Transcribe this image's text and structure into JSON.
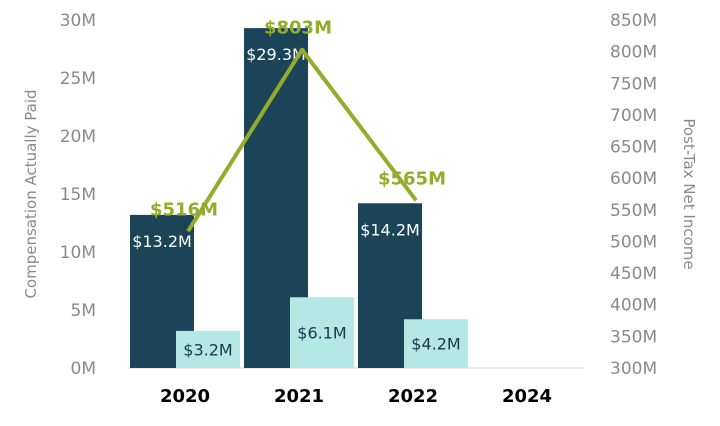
{
  "chart_data": {
    "type": "bar",
    "categories": [
      "2020",
      "2021",
      "2022",
      "2024"
    ],
    "left_axis": {
      "label": "Compensation Actually Paid",
      "ylim": [
        0,
        30
      ],
      "ticks": [
        "0M",
        "5M",
        "10M",
        "15M",
        "20M",
        "25M",
        "30M"
      ]
    },
    "right_axis": {
      "label": "Post-Tax Net Income",
      "ylim": [
        300,
        850
      ],
      "ticks": [
        "300M",
        "350M",
        "400M",
        "450M",
        "500M",
        "550M",
        "600M",
        "650M",
        "700M",
        "750M",
        "800M",
        "850M"
      ]
    },
    "series": [
      {
        "name": "Compensation Actually Paid (Series 1)",
        "type": "bar",
        "axis": "left",
        "color": "#1b4459",
        "values": [
          13.2,
          29.3,
          14.2,
          null
        ],
        "labels": [
          "$13.2M",
          "$29.3M",
          "$14.2M",
          ""
        ]
      },
      {
        "name": "Compensation Actually Paid (Series 2)",
        "type": "bar",
        "axis": "left",
        "color": "#b3e8e5",
        "values": [
          3.2,
          6.1,
          4.2,
          null
        ],
        "labels": [
          "$3.2M",
          "$6.1M",
          "$4.2M",
          ""
        ]
      },
      {
        "name": "Post-Tax Net Income",
        "type": "line",
        "axis": "right",
        "color": "#94ac2b",
        "values": [
          516,
          803,
          565,
          null
        ],
        "labels": [
          "$516M",
          "$803M",
          "$565M",
          ""
        ]
      }
    ]
  }
}
